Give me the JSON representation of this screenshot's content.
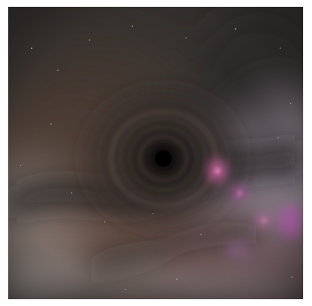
{
  "image": {
    "palette": {
      "frame": "#ffffff",
      "dust_dark": "#1f1c1b",
      "dust_brown": "#6c4f3c",
      "dust_red": "#8f6b5b",
      "milky_white": "#b9b2ae",
      "glow_pink": "#e26db2",
      "glow_magenta": "#d754c6",
      "shadow": "#000000"
    }
  }
}
